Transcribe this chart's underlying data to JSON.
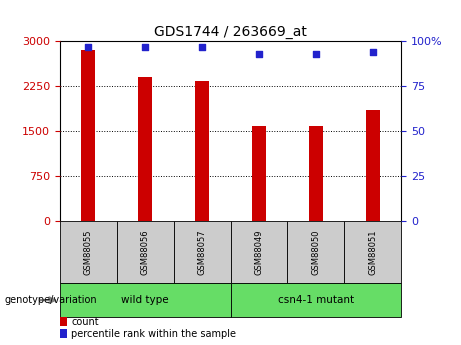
{
  "title": "GDS1744 / 263669_at",
  "categories": [
    "GSM88055",
    "GSM88056",
    "GSM88057",
    "GSM88049",
    "GSM88050",
    "GSM88051"
  ],
  "counts": [
    2850,
    2400,
    2340,
    1580,
    1590,
    1850
  ],
  "percentile_ranks": [
    97,
    97,
    97,
    93,
    93,
    94
  ],
  "ylim_left": [
    0,
    3000
  ],
  "ylim_right": [
    0,
    100
  ],
  "yticks_left": [
    0,
    750,
    1500,
    2250,
    3000
  ],
  "yticks_right": [
    0,
    25,
    50,
    75,
    100
  ],
  "bar_color": "#cc0000",
  "dot_color": "#2222cc",
  "left_tick_color": "#cc0000",
  "right_tick_color": "#2222cc",
  "groups": [
    {
      "label": "wild type",
      "start": 0,
      "end": 2,
      "color": "#66dd66"
    },
    {
      "label": "csn4-1 mutant",
      "start": 3,
      "end": 5,
      "color": "#66dd66"
    }
  ],
  "group_label": "genotype/variation",
  "legend_count_label": "count",
  "legend_percentile_label": "percentile rank within the sample",
  "bg_color": "#ffffff",
  "plot_bg_color": "#ffffff",
  "grid_color": "#000000",
  "tick_label_area_color": "#cccccc",
  "right_tick_suffix": "%"
}
